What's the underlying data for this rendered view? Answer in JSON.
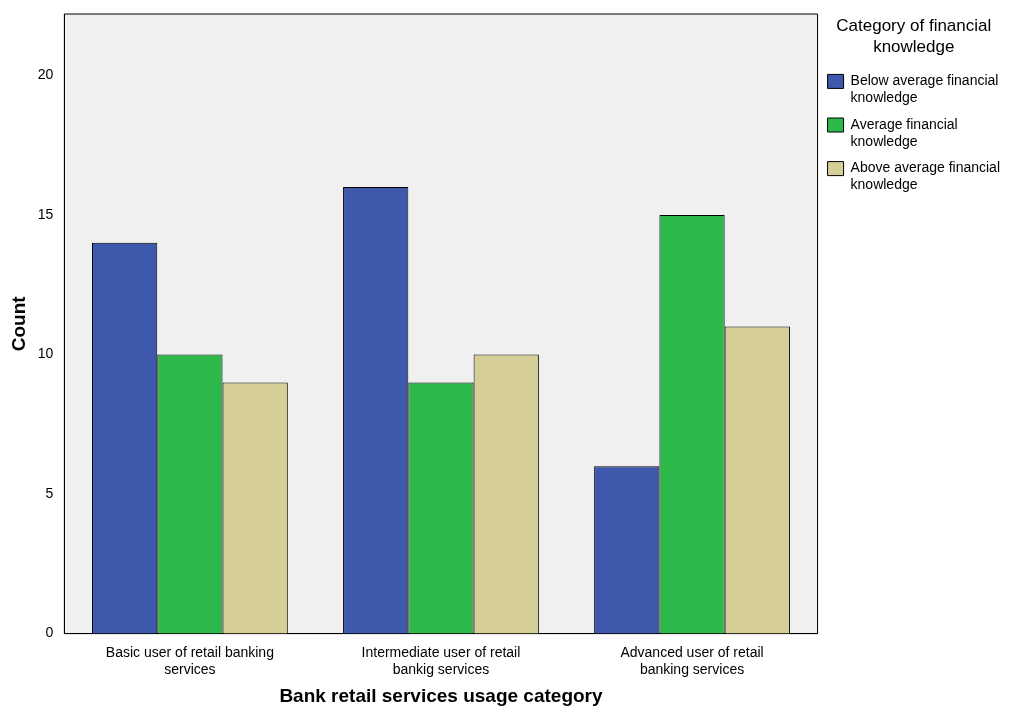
{
  "chart_data": {
    "type": "bar",
    "xlabel": "Bank retail services usage category",
    "ylabel": "Count",
    "legend_title": "Category of financial knowledge",
    "categories": [
      "Basic user of retail banking services",
      "Intermediate user of retail bankig services",
      "Advanced user of retail banking services"
    ],
    "series": [
      {
        "name": "Below average financial knowledge",
        "color": "#3e58ac",
        "values": [
          14,
          16,
          6
        ]
      },
      {
        "name": "Average financial knowledge",
        "color": "#2db84a",
        "values": [
          10,
          9,
          15
        ]
      },
      {
        "name": "Above average financial knowledge",
        "color": "#d5cf97",
        "values": [
          9,
          10,
          11
        ]
      }
    ],
    "ylim": [
      0,
      22.2
    ],
    "yticks": [
      0,
      5,
      10,
      15,
      20
    ],
    "grid": false,
    "legend": "top right"
  }
}
